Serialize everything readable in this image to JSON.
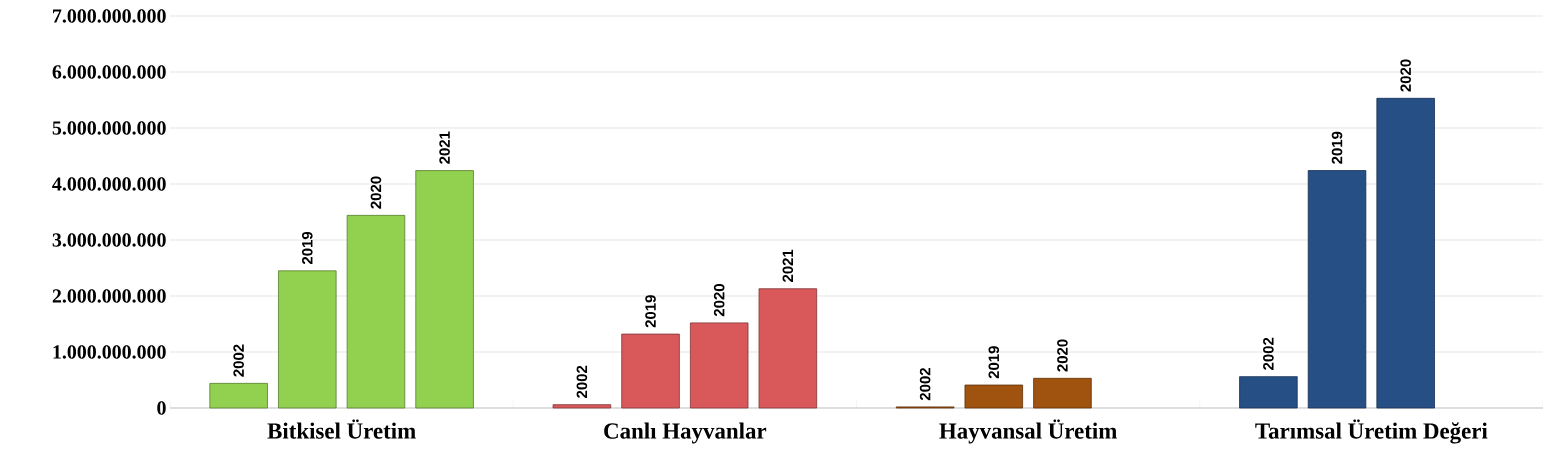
{
  "chart_data": {
    "type": "bar",
    "categories": [
      "Bitkisel Üretim",
      "Canlı Hayvanlar",
      "Hayvansal Üretim",
      "Tarımsal Üretim Değeri"
    ],
    "series": [
      {
        "name": "2002",
        "colors": [
          "#92d050",
          "#d9595b",
          "#a0520f",
          "#264f86"
        ],
        "values": [
          440000000,
          60000000,
          20000000,
          560000000
        ]
      },
      {
        "name": "2019",
        "colors": [
          "#92d050",
          "#d9595b",
          "#a0520f",
          "#264f86"
        ],
        "values": [
          2450000000,
          1320000000,
          410000000,
          4240000000
        ]
      },
      {
        "name": "2020",
        "colors": [
          "#92d050",
          "#d9595b",
          "#a0520f",
          "#264f86"
        ],
        "values": [
          3440000000,
          1520000000,
          530000000,
          5530000000
        ]
      },
      {
        "name": "2021",
        "colors": [
          "#92d050",
          "#d9595b",
          "#a0520f",
          "#264f86"
        ],
        "values": [
          4240000000,
          2130000000,
          null,
          null
        ]
      }
    ],
    "ylim": [
      0,
      7000000000
    ],
    "yticks": [
      0,
      {
        "value": 1000000000,
        "label": "1.000.000.000"
      },
      {
        "value": 2000000000,
        "label": "2.000.000.000"
      },
      {
        "value": 3000000000,
        "label": "3.000.000.000"
      },
      {
        "value": 4000000000,
        "label": "4.000.000.000"
      },
      {
        "value": 5000000000,
        "label": "5.000.000.000"
      },
      {
        "value": 6000000000,
        "label": "6.000.000.000"
      },
      {
        "value": 7000000000,
        "label": "7.000.000.000"
      }
    ],
    "grid": "y"
  }
}
